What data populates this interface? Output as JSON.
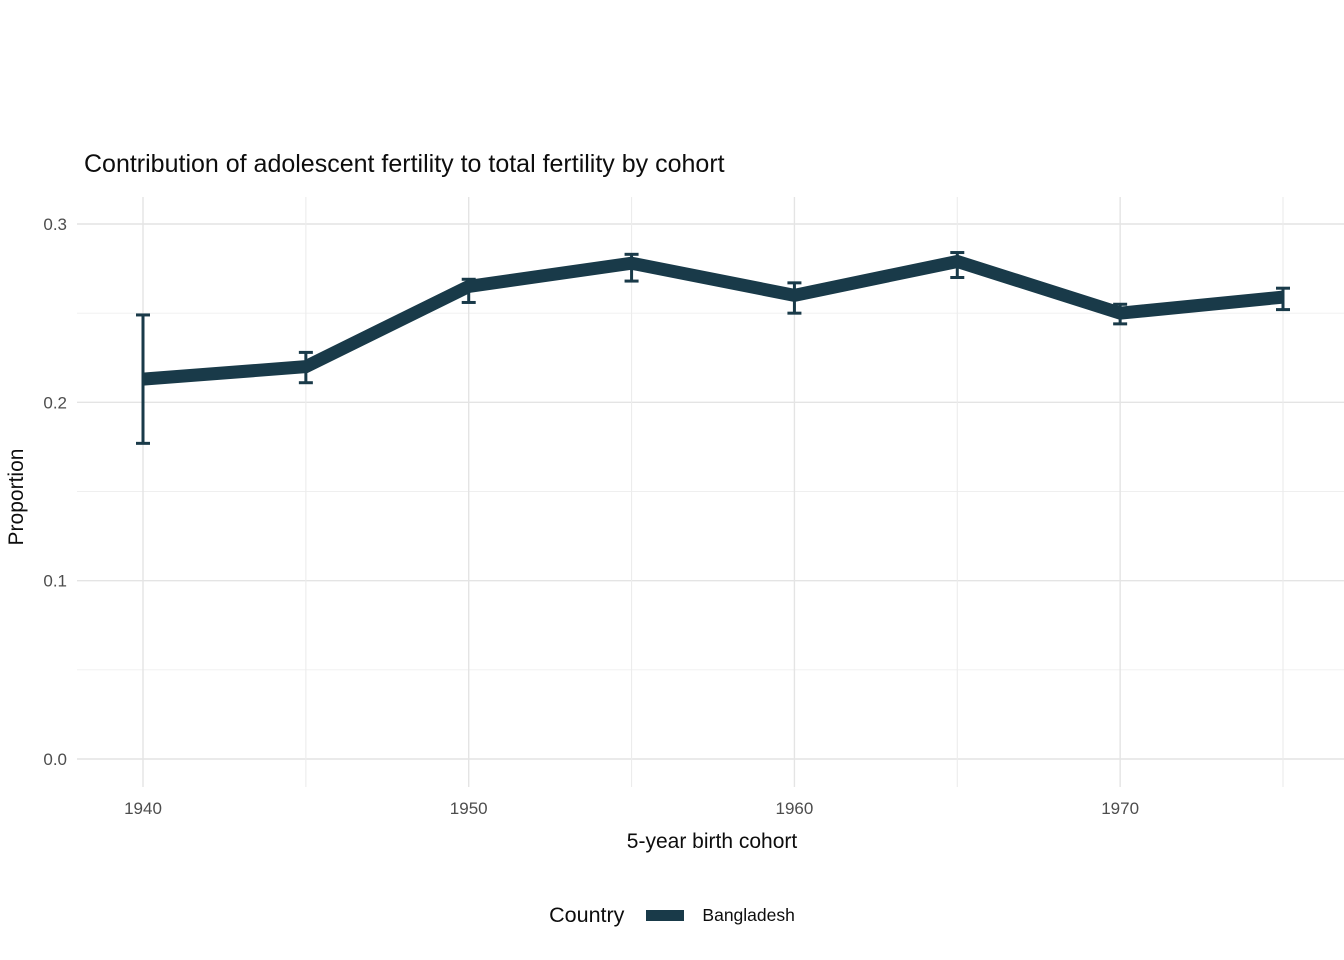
{
  "colors": {
    "series": "#193a49",
    "grid_major": "#e4e4e4",
    "grid_minor": "#efefef",
    "tick_label": "#4d4d4d",
    "text": "#0d0d0d",
    "background": "#ffffff"
  },
  "chart_data": {
    "type": "line",
    "title": "Contribution of adolescent fertility to total fertility by cohort",
    "xlabel": "5-year birth cohort",
    "ylabel": "Proportion",
    "legend_title": "Country",
    "legend_position": "bottom",
    "grid": true,
    "x": [
      1940,
      1945,
      1950,
      1955,
      1960,
      1965,
      1970,
      1975
    ],
    "series": [
      {
        "name": "Bangladesh",
        "color": "#193a49",
        "values": [
          0.213,
          0.22,
          0.265,
          0.278,
          0.26,
          0.279,
          0.25,
          0.259
        ],
        "ci_low": [
          0.177,
          0.211,
          0.256,
          0.268,
          0.25,
          0.27,
          0.244,
          0.252
        ],
        "ci_high": [
          0.249,
          0.228,
          0.269,
          0.283,
          0.267,
          0.284,
          0.255,
          0.264
        ]
      }
    ],
    "x_ticks": {
      "values": [
        1940,
        1950,
        1960,
        1970
      ],
      "labels": [
        "1940",
        "1950",
        "1960",
        "1970"
      ]
    },
    "x_gridlines": [
      1940,
      1945,
      1950,
      1955,
      1960,
      1965,
      1970,
      1975
    ],
    "y_ticks": {
      "values": [
        0.0,
        0.1,
        0.2,
        0.3
      ],
      "labels": [
        "0.0",
        "0.1",
        "0.2",
        "0.3"
      ]
    },
    "y_minor": [
      0.05,
      0.15,
      0.25
    ],
    "xlim": [
      1937.97,
      1976.87
    ],
    "ylim": [
      -0.0157,
      0.3152
    ]
  }
}
